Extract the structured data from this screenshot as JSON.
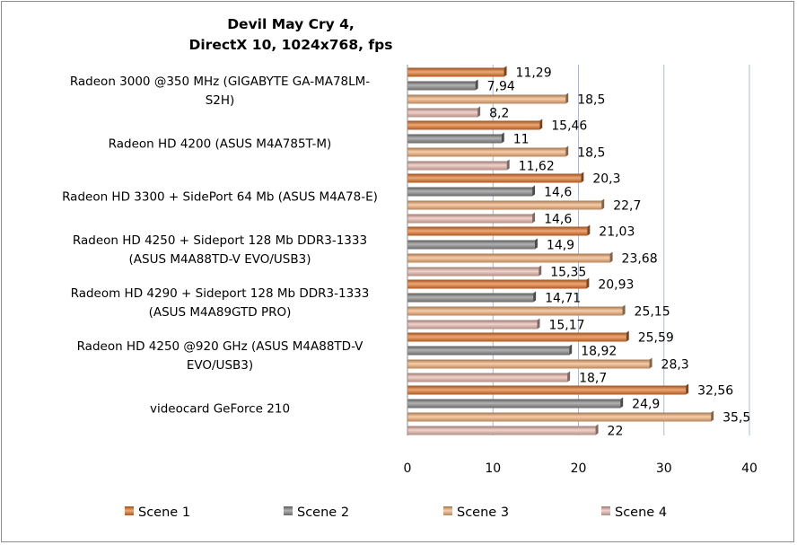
{
  "chart_data": {
    "type": "bar",
    "orientation": "horizontal",
    "title": [
      "Devil May Cry 4,",
      "DirectX 10, 1024x768, fps"
    ],
    "categories": [
      [
        "Radeon 3000 @350 MHz (GIGABYTE GA-MA78LM-",
        "S2H)"
      ],
      [
        "Radeon HD 4200 (ASUS M4A785T-M)"
      ],
      [
        "Radeon HD 3300 + SidePort 64 Mb (ASUS M4A78-E)"
      ],
      [
        "Radeon HD 4250 + Sideport 128 Mb DDR3-1333",
        "(ASUS M4A88TD-V EVO/USB3)"
      ],
      [
        "Radeom HD 4290 + Sideport 128 Mb DDR3-1333",
        "(ASUS M4A89GTD PRO)"
      ],
      [
        "Radeon HD 4250 @920 GHz (ASUS M4A88TD-V",
        "EVO/USB3)"
      ],
      [
        "videocard GeForce 210"
      ]
    ],
    "series": [
      {
        "name": "Scene 1",
        "values": [
          11.29,
          15.46,
          20.3,
          21.03,
          20.93,
          25.59,
          32.56
        ],
        "labels": [
          "11,29",
          "15,46",
          "20,3",
          "21,03",
          "20,93",
          "25,59",
          "32,56"
        ],
        "color": "#e8782a"
      },
      {
        "name": "Scene 2",
        "values": [
          7.94,
          11,
          14.6,
          14.9,
          14.71,
          18.92,
          24.9
        ],
        "labels": [
          "7,94",
          "11",
          "14,6",
          "14,9",
          "14,71",
          "18,92",
          "24,9"
        ],
        "color": "#8a8a8a"
      },
      {
        "name": "Scene 3",
        "values": [
          18.5,
          18.5,
          22.7,
          23.68,
          25.15,
          28.3,
          35.5
        ],
        "labels": [
          "18,5",
          "18,5",
          "22,7",
          "23,68",
          "25,15",
          "28,3",
          "35,5"
        ],
        "color": "#f6b37a"
      },
      {
        "name": "Scene 4",
        "values": [
          8.2,
          11.62,
          14.6,
          15.35,
          15.17,
          18.7,
          22
        ],
        "labels": [
          "8,2",
          "11,62",
          "14,6",
          "15,35",
          "15,17",
          "18,7",
          "22"
        ],
        "color": "#ecbcb0"
      }
    ],
    "xlim": [
      0,
      40
    ],
    "xticks": [
      0,
      10,
      20,
      30,
      40
    ],
    "xtick_labels": [
      "0",
      "10",
      "20",
      "30",
      "40"
    ],
    "grid": true,
    "legend_position": "bottom"
  }
}
